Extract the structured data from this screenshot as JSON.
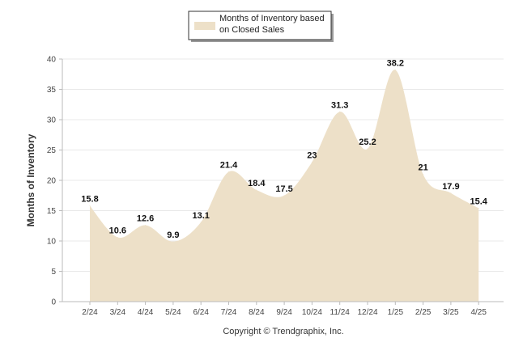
{
  "chart_data": {
    "type": "area",
    "categories": [
      "2/24",
      "3/24",
      "4/24",
      "5/24",
      "6/24",
      "7/24",
      "8/24",
      "9/24",
      "10/24",
      "11/24",
      "12/24",
      "1/25",
      "2/25",
      "3/25",
      "4/25"
    ],
    "series": [
      {
        "name": "Months of Inventory based on Closed Sales",
        "values": [
          15.8,
          10.6,
          12.6,
          9.9,
          13.1,
          21.4,
          18.4,
          17.5,
          23,
          31.3,
          25.2,
          38.2,
          21,
          17.9,
          15.4
        ],
        "color": "#ede0c8"
      }
    ],
    "data_labels": [
      "15.8",
      "10.6",
      "12.6",
      "9.9",
      "13.1",
      "21.4",
      "18.4",
      "17.5",
      "23",
      "31.3",
      "25.2",
      "38.2",
      "21",
      "17.9",
      "15.4"
    ],
    "legend_lines": [
      "Months of Inventory based",
      "on Closed Sales"
    ],
    "ylabel": "Months of Inventory",
    "xlabel": "",
    "ylim": [
      0,
      40
    ],
    "yticks": [
      0,
      5,
      10,
      15,
      20,
      25,
      30,
      35,
      40
    ],
    "grid": true,
    "legend_position": "top-center"
  },
  "footer": {
    "copyright": "Copyright © Trendgraphix, Inc."
  },
  "colors": {
    "area_fill": "#ede0c8",
    "grid": "#e8e8e8",
    "axis": "#bbbbbb",
    "legend_border": "#333333"
  }
}
